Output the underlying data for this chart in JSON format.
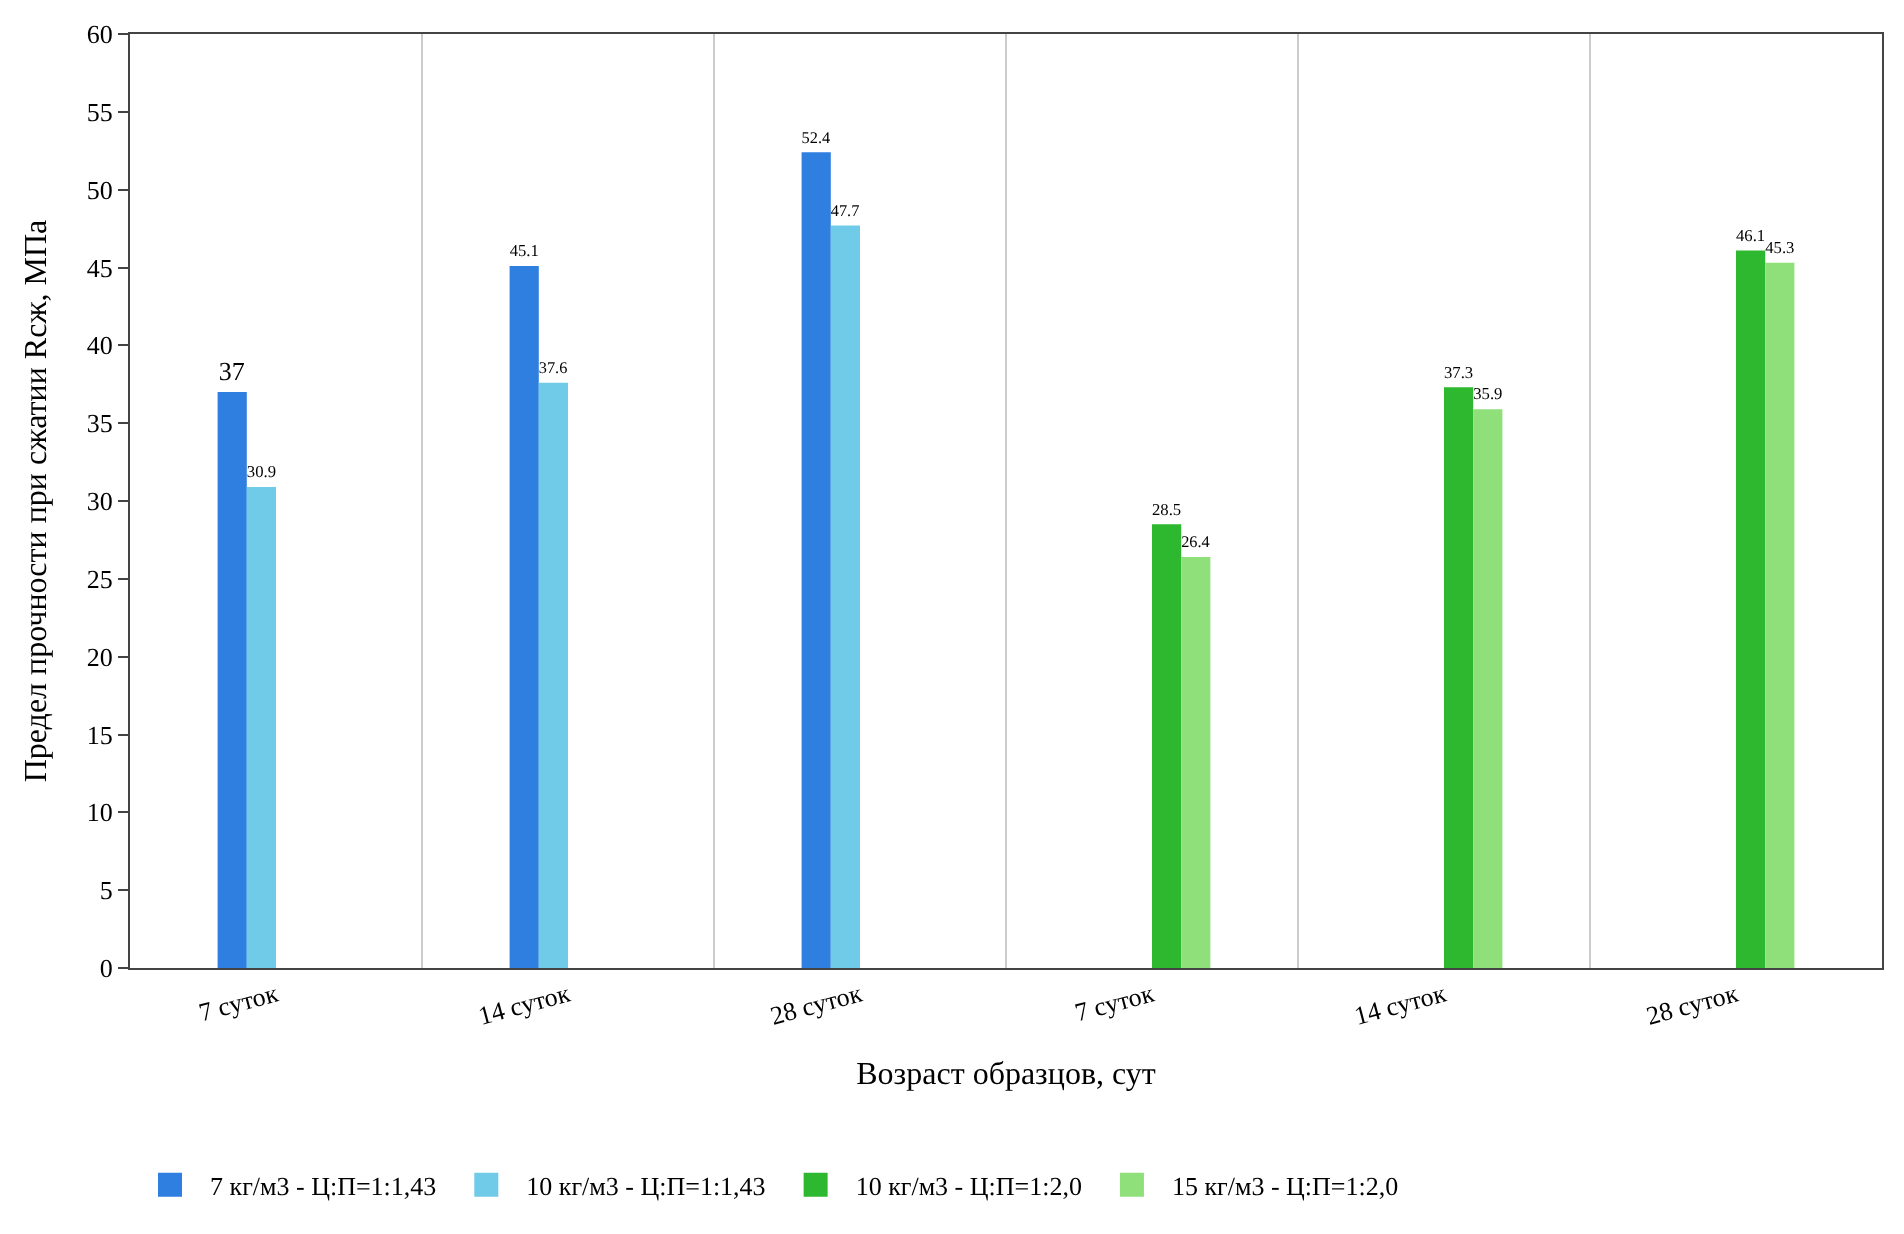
{
  "chart_data": {
    "type": "bar",
    "xlabel": "Возраст образцов, сут",
    "ylabel": "Предел прочности при сжатии Rсж, МПа",
    "categories": [
      "7 суток",
      "14 суток",
      "28 суток",
      "7 суток",
      "14 суток",
      "28 суток"
    ],
    "series": [
      {
        "name": "7 кг/м3 - Ц:П=1:1,43",
        "color": "#2f7fe0",
        "values": [
          37,
          45.1,
          52.4,
          null,
          null,
          null
        ]
      },
      {
        "name": "10 кг/м3 - Ц:П=1:1,43",
        "color": "#6fcbe8",
        "values": [
          30.9,
          37.6,
          47.7,
          null,
          null,
          null
        ]
      },
      {
        "name": "10 кг/м3 - Ц:П=1:2,0",
        "color": "#2db830",
        "values": [
          null,
          null,
          null,
          28.5,
          37.3,
          46.1
        ]
      },
      {
        "name": "15 кг/м3 - Ц:П=1:2,0",
        "color": "#8fe07a",
        "values": [
          null,
          null,
          null,
          26.4,
          35.9,
          45.3
        ]
      }
    ],
    "ylim": [
      0,
      60
    ],
    "yticks": [
      0,
      5,
      10,
      15,
      20,
      25,
      30,
      35,
      40,
      45,
      50,
      55,
      60
    ],
    "data_labels": true,
    "grid": "x",
    "legend": "bottom"
  }
}
